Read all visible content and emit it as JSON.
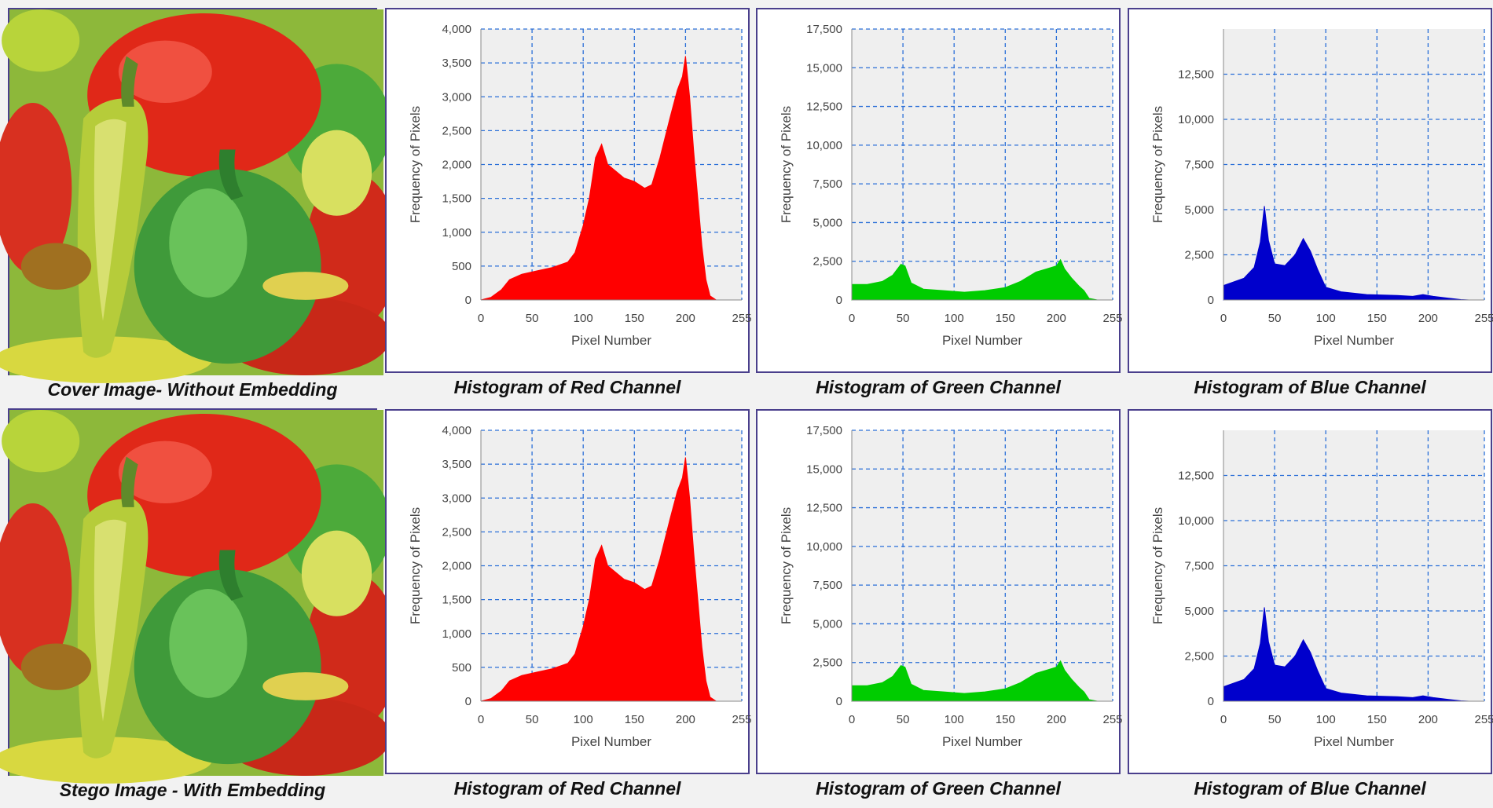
{
  "rows": [
    {
      "image_caption": "Cover Image- Without Embedding",
      "captions": [
        "Histogram of Red Channel",
        "Histogram of Green Channel",
        "Histogram of Blue Channel"
      ]
    },
    {
      "image_caption": "Stego Image - With Embedding",
      "captions": [
        "Histogram of Red Channel",
        "Histogram of Green Channel",
        "Histogram of Blue Channel"
      ]
    }
  ],
  "chart_data": [
    {
      "type": "area",
      "title": "Histogram of Red Channel",
      "color": "#ff0000",
      "xlabel": "Pixel Number",
      "ylabel": "Frequency of Pixels",
      "xlim": [
        0,
        255
      ],
      "ylim": [
        0,
        4000
      ],
      "xticks": [
        0,
        50,
        100,
        150,
        200,
        255
      ],
      "yticks": [
        0,
        500,
        1000,
        1500,
        2000,
        2500,
        3000,
        3500,
        4000
      ],
      "ytick_labels": [
        "0",
        "500",
        "1,000",
        "1,500",
        "2,000",
        "2,500",
        "3,000",
        "3,500",
        "4,000"
      ],
      "points": [
        [
          0,
          0
        ],
        [
          10,
          40
        ],
        [
          20,
          150
        ],
        [
          28,
          300
        ],
        [
          40,
          380
        ],
        [
          55,
          430
        ],
        [
          70,
          480
        ],
        [
          85,
          560
        ],
        [
          92,
          700
        ],
        [
          100,
          1100
        ],
        [
          106,
          1500
        ],
        [
          112,
          2100
        ],
        [
          118,
          2300
        ],
        [
          124,
          2000
        ],
        [
          132,
          1900
        ],
        [
          140,
          1800
        ],
        [
          150,
          1750
        ],
        [
          160,
          1650
        ],
        [
          167,
          1700
        ],
        [
          175,
          2100
        ],
        [
          185,
          2700
        ],
        [
          192,
          3100
        ],
        [
          197,
          3300
        ],
        [
          200,
          3600
        ],
        [
          204,
          3000
        ],
        [
          208,
          2200
        ],
        [
          212,
          1500
        ],
        [
          216,
          800
        ],
        [
          220,
          300
        ],
        [
          224,
          60
        ],
        [
          230,
          0
        ],
        [
          255,
          0
        ]
      ]
    },
    {
      "type": "area",
      "title": "Histogram of Green Channel",
      "color": "#00cc00",
      "xlabel": "Pixel Number",
      "ylabel": "Frequency of Pixels",
      "xlim": [
        0,
        255
      ],
      "ylim": [
        0,
        17500
      ],
      "xticks": [
        0,
        50,
        100,
        150,
        200,
        255
      ],
      "yticks": [
        0,
        2500,
        5000,
        7500,
        10000,
        12500,
        15000,
        17500
      ],
      "ytick_labels": [
        "0",
        "2,500",
        "5,000",
        "7,500",
        "10,000",
        "12,500",
        "15,000",
        "17,500"
      ],
      "points": [
        [
          0,
          1000
        ],
        [
          15,
          1000
        ],
        [
          30,
          1200
        ],
        [
          40,
          1600
        ],
        [
          48,
          2300
        ],
        [
          52,
          2200
        ],
        [
          58,
          1100
        ],
        [
          70,
          700
        ],
        [
          90,
          600
        ],
        [
          110,
          500
        ],
        [
          130,
          600
        ],
        [
          150,
          800
        ],
        [
          165,
          1200
        ],
        [
          180,
          1800
        ],
        [
          190,
          2000
        ],
        [
          200,
          2200
        ],
        [
          204,
          2600
        ],
        [
          208,
          2000
        ],
        [
          215,
          1400
        ],
        [
          222,
          900
        ],
        [
          227,
          600
        ],
        [
          232,
          100
        ],
        [
          240,
          0
        ],
        [
          255,
          0
        ]
      ]
    },
    {
      "type": "area",
      "title": "Histogram of Blue Channel",
      "color": "#0000cc",
      "xlabel": "Pixel Number",
      "ylabel": "Frequency of Pixels",
      "xlim": [
        0,
        255
      ],
      "ylim": [
        0,
        15000
      ],
      "xticks": [
        0,
        50,
        100,
        150,
        200,
        255
      ],
      "yticks": [
        0,
        2500,
        5000,
        7500,
        10000,
        12500
      ],
      "ytick_labels": [
        "0",
        "2,500",
        "5,000",
        "7,500",
        "10,000",
        "12,500"
      ],
      "points": [
        [
          0,
          800
        ],
        [
          10,
          1000
        ],
        [
          20,
          1200
        ],
        [
          30,
          1800
        ],
        [
          36,
          3200
        ],
        [
          40,
          5200
        ],
        [
          44,
          3300
        ],
        [
          50,
          2000
        ],
        [
          60,
          1900
        ],
        [
          70,
          2500
        ],
        [
          78,
          3400
        ],
        [
          85,
          2700
        ],
        [
          92,
          1700
        ],
        [
          100,
          700
        ],
        [
          115,
          450
        ],
        [
          140,
          300
        ],
        [
          170,
          250
        ],
        [
          185,
          200
        ],
        [
          195,
          300
        ],
        [
          205,
          200
        ],
        [
          220,
          100
        ],
        [
          232,
          20
        ],
        [
          240,
          0
        ],
        [
          255,
          0
        ]
      ]
    },
    {
      "type": "area",
      "title": "Histogram of Red Channel",
      "color": "#ff0000",
      "xlabel": "Pixel Number",
      "ylabel": "Frequency of Pixels",
      "xlim": [
        0,
        255
      ],
      "ylim": [
        0,
        4000
      ],
      "xticks": [
        0,
        50,
        100,
        150,
        200,
        255
      ],
      "yticks": [
        0,
        500,
        1000,
        1500,
        2000,
        2500,
        3000,
        3500,
        4000
      ],
      "ytick_labels": [
        "0",
        "500",
        "1,000",
        "1,500",
        "2,000",
        "2,500",
        "3,000",
        "3,500",
        "4,000"
      ],
      "points": [
        [
          0,
          0
        ],
        [
          10,
          40
        ],
        [
          20,
          150
        ],
        [
          28,
          300
        ],
        [
          40,
          380
        ],
        [
          55,
          430
        ],
        [
          70,
          480
        ],
        [
          85,
          560
        ],
        [
          92,
          700
        ],
        [
          100,
          1100
        ],
        [
          106,
          1500
        ],
        [
          112,
          2100
        ],
        [
          118,
          2300
        ],
        [
          124,
          2000
        ],
        [
          132,
          1900
        ],
        [
          140,
          1800
        ],
        [
          150,
          1750
        ],
        [
          160,
          1650
        ],
        [
          167,
          1700
        ],
        [
          175,
          2100
        ],
        [
          185,
          2700
        ],
        [
          192,
          3100
        ],
        [
          197,
          3300
        ],
        [
          200,
          3600
        ],
        [
          204,
          3000
        ],
        [
          208,
          2200
        ],
        [
          212,
          1500
        ],
        [
          216,
          800
        ],
        [
          220,
          300
        ],
        [
          224,
          60
        ],
        [
          230,
          0
        ],
        [
          255,
          0
        ]
      ]
    },
    {
      "type": "area",
      "title": "Histogram of Green Channel",
      "color": "#00cc00",
      "xlabel": "Pixel Number",
      "ylabel": "Frequency of Pixels",
      "xlim": [
        0,
        255
      ],
      "ylim": [
        0,
        17500
      ],
      "xticks": [
        0,
        50,
        100,
        150,
        200,
        255
      ],
      "yticks": [
        0,
        2500,
        5000,
        7500,
        10000,
        12500,
        15000,
        17500
      ],
      "ytick_labels": [
        "0",
        "2,500",
        "5,000",
        "7,500",
        "10,000",
        "12,500",
        "15,000",
        "17,500"
      ],
      "points": [
        [
          0,
          1000
        ],
        [
          15,
          1000
        ],
        [
          30,
          1200
        ],
        [
          40,
          1600
        ],
        [
          48,
          2300
        ],
        [
          52,
          2200
        ],
        [
          58,
          1100
        ],
        [
          70,
          700
        ],
        [
          90,
          600
        ],
        [
          110,
          500
        ],
        [
          130,
          600
        ],
        [
          150,
          800
        ],
        [
          165,
          1200
        ],
        [
          180,
          1800
        ],
        [
          190,
          2000
        ],
        [
          200,
          2200
        ],
        [
          204,
          2600
        ],
        [
          208,
          2000
        ],
        [
          215,
          1400
        ],
        [
          222,
          900
        ],
        [
          227,
          600
        ],
        [
          232,
          100
        ],
        [
          240,
          0
        ],
        [
          255,
          0
        ]
      ]
    },
    {
      "type": "area",
      "title": "Histogram of Blue Channel",
      "color": "#0000cc",
      "xlabel": "Pixel Number",
      "ylabel": "Frequency of Pixels",
      "xlim": [
        0,
        255
      ],
      "ylim": [
        0,
        15000
      ],
      "xticks": [
        0,
        50,
        100,
        150,
        200,
        255
      ],
      "yticks": [
        0,
        2500,
        5000,
        7500,
        10000,
        12500
      ],
      "ytick_labels": [
        "0",
        "2,500",
        "5,000",
        "7,500",
        "10,000",
        "12,500"
      ],
      "points": [
        [
          0,
          800
        ],
        [
          10,
          1000
        ],
        [
          20,
          1200
        ],
        [
          30,
          1800
        ],
        [
          36,
          3200
        ],
        [
          40,
          5200
        ],
        [
          44,
          3300
        ],
        [
          50,
          2000
        ],
        [
          60,
          1900
        ],
        [
          70,
          2500
        ],
        [
          78,
          3400
        ],
        [
          85,
          2700
        ],
        [
          92,
          1700
        ],
        [
          100,
          700
        ],
        [
          115,
          450
        ],
        [
          140,
          300
        ],
        [
          170,
          250
        ],
        [
          185,
          200
        ],
        [
          195,
          300
        ],
        [
          205,
          200
        ],
        [
          220,
          100
        ],
        [
          232,
          20
        ],
        [
          240,
          0
        ],
        [
          255,
          0
        ]
      ]
    }
  ]
}
